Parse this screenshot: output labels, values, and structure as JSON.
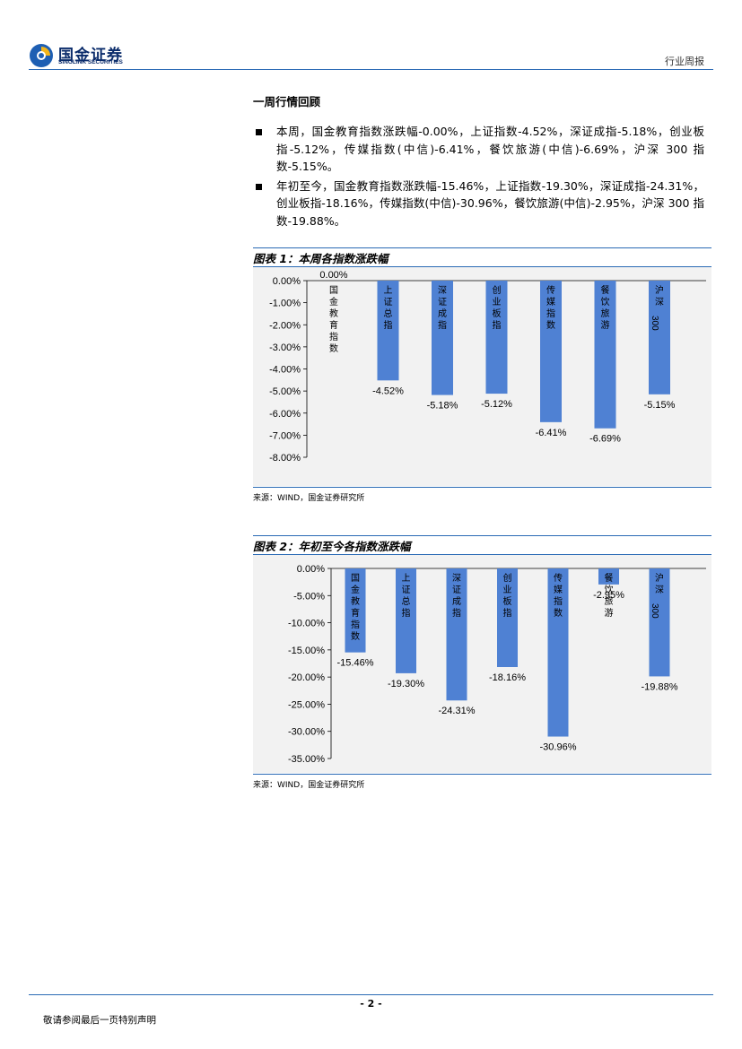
{
  "header": {
    "logo_cn": "国金证券",
    "logo_en": "SINOLINK SECURITIES",
    "report_type": "行业周报"
  },
  "section": {
    "title": "一周行情回顾",
    "bullets": [
      "本周，国金教育指数涨跌幅-0.00%，上证指数-4.52%，深证成指-5.18%，创业板指-5.12%，传媒指数(中信)-6.41%，餐饮旅游(中信)-6.69%，沪深 300 指数-5.15%。",
      "年初至今，国金教育指数涨跌幅-15.46%，上证指数-19.30%，深证成指-24.31%，创业板指-18.16%，传媒指数(中信)-30.96%，餐饮旅游(中信)-2.95%，沪深 300 指数-19.88%。"
    ]
  },
  "figures": [
    {
      "title": "图表 1：本周各指数涨跌幅",
      "source": "来源：WIND，国金证券研究所"
    },
    {
      "title": "图表 2：年初至今各指数涨跌幅",
      "source": "来源：WIND，国金证券研究所"
    }
  ],
  "chart_data": [
    {
      "type": "bar",
      "categories": [
        "国金教育指数",
        "上证总指",
        "深证成指",
        "创业板指",
        "传媒指数",
        "餐饮旅游",
        "沪深300"
      ],
      "values": [
        0.0,
        -4.52,
        -5.18,
        -5.12,
        -6.41,
        -6.69,
        -5.15
      ],
      "value_labels": [
        "0.00%",
        "-4.52%",
        "-5.18%",
        "-5.12%",
        "-6.41%",
        "-6.69%",
        "-5.15%"
      ],
      "ylim": [
        -8,
        0
      ],
      "yticks": [
        0,
        -1,
        -2,
        -3,
        -4,
        -5,
        -6,
        -7,
        -8
      ],
      "ytick_labels": [
        "0.00%",
        "-1.00%",
        "-2.00%",
        "-3.00%",
        "-4.00%",
        "-5.00%",
        "-6.00%",
        "-7.00%",
        "-8.00%"
      ],
      "bar_color": "#4f81d3",
      "grid": false
    },
    {
      "type": "bar",
      "categories": [
        "国金教育指数",
        "上证总指",
        "深证成指",
        "创业板指",
        "传媒指数",
        "餐饮旅游",
        "沪深300"
      ],
      "values": [
        -15.46,
        -19.3,
        -24.31,
        -18.16,
        -30.96,
        -2.95,
        -19.88
      ],
      "value_labels": [
        "-15.46%",
        "-19.30%",
        "-24.31%",
        "-18.16%",
        "-30.96%",
        "-2.95%",
        "-19.88%"
      ],
      "ylim": [
        -35,
        0
      ],
      "yticks": [
        0,
        -5,
        -10,
        -15,
        -20,
        -25,
        -30,
        -35
      ],
      "ytick_labels": [
        "0.00%",
        "-5.00%",
        "-10.00%",
        "-15.00%",
        "-20.00%",
        "-25.00%",
        "-30.00%",
        "-35.00%"
      ],
      "bar_color": "#4f81d3",
      "grid": false
    }
  ],
  "footer": {
    "page": "- 2 -",
    "disclaimer": "敬请参阅最后一页特别声明"
  }
}
